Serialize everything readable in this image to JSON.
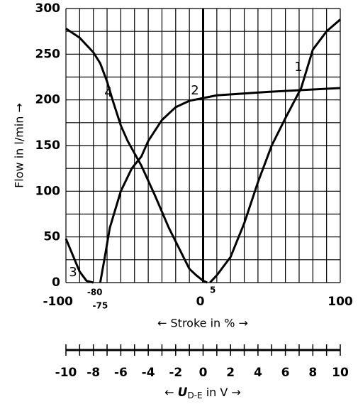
{
  "chart_data": {
    "type": "line",
    "ylabel": "Flow in l/min →",
    "xlabel": "← Stroke in % →",
    "xlim": [
      -100,
      100
    ],
    "ylim": [
      0,
      300
    ],
    "xticks": [
      -100,
      0,
      100
    ],
    "xticks_small": [
      -80,
      -75,
      5
    ],
    "yticks": [
      0,
      50,
      100,
      150,
      200,
      250,
      300
    ],
    "xgrid": [
      -100,
      -90,
      -80,
      -70,
      -60,
      -50,
      -40,
      -30,
      -20,
      -10,
      0,
      10,
      20,
      30,
      40,
      50,
      60,
      70,
      80,
      90,
      100
    ],
    "ygrid": [
      0,
      25,
      50,
      75,
      100,
      125,
      150,
      175,
      200,
      225,
      250,
      275,
      300
    ],
    "grid": true,
    "series": [
      {
        "name": "1",
        "color": "#000000",
        "x": [
          5,
          10,
          20,
          30,
          40,
          50,
          60,
          71.5,
          80,
          90,
          100
        ],
        "values": [
          0,
          8,
          28,
          65,
          110,
          150,
          180,
          213,
          255,
          275,
          288
        ]
      },
      {
        "name": "2",
        "color": "#000000",
        "x": [
          -75,
          -72,
          -68,
          -60,
          -52,
          -45,
          -40,
          -30,
          -20,
          -10,
          0,
          10,
          50,
          100
        ],
        "values": [
          0,
          25,
          60,
          100,
          125,
          138,
          155,
          178,
          192,
          199,
          202,
          205,
          209,
          213
        ]
      },
      {
        "name": "3",
        "color": "#000000",
        "x": [
          -100,
          -95,
          -90,
          -85,
          -80
        ],
        "values": [
          48,
          30,
          12,
          2,
          0
        ]
      },
      {
        "name": "4",
        "color": "#000000",
        "x": [
          -100,
          -90,
          -80,
          -75,
          -70,
          -66,
          -60,
          -55,
          -45,
          -35,
          -25,
          -15,
          -10,
          -5,
          0,
          3
        ],
        "values": [
          278,
          268,
          252,
          240,
          220,
          200,
          172,
          155,
          128,
          95,
          60,
          30,
          15,
          8,
          2,
          0
        ]
      }
    ],
    "x2label": {
      "prefix": "← ",
      "symbol": "U",
      "subscript": "D-E",
      "suffix": " in V →"
    },
    "x2lim": [
      -10,
      10
    ],
    "x2ticks": [
      -10,
      -8,
      -6,
      -4,
      -2,
      0,
      2,
      4,
      6,
      8,
      10
    ],
    "x2minor_ticks": [
      -9,
      -7,
      -5,
      -3,
      -1,
      1,
      3,
      5,
      7,
      9
    ]
  }
}
